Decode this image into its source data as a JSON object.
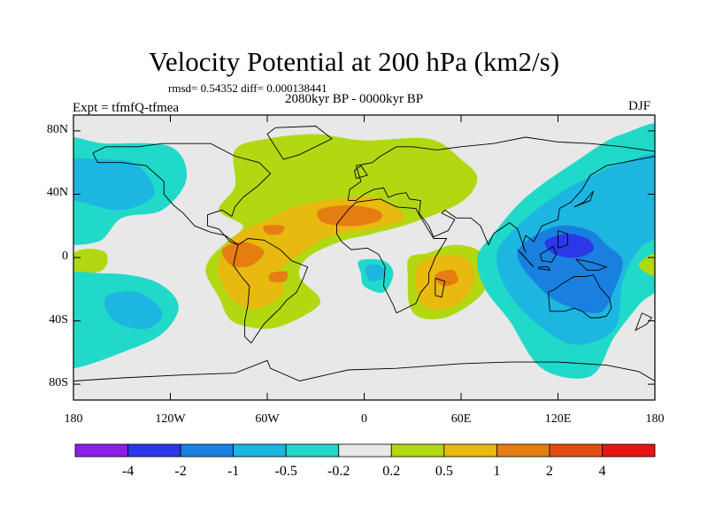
{
  "title": "Velocity Potential at 200 hPa (km2/s)",
  "stats": "rmsd= 0.54352 diff= 0.000138441",
  "experiment": "Expt = tfmfQ-tfmea",
  "period": "2080kyr BP - 0000kyr BP",
  "season": "DJF",
  "colors": {
    "background": "#e8e8e8",
    "frame": "#000000",
    "coast": "#000000"
  },
  "axes": {
    "y_ticks": [
      {
        "label": "80N",
        "lat": 80
      },
      {
        "label": "40N",
        "lat": 40
      },
      {
        "label": "0",
        "lat": 0
      },
      {
        "label": "40S",
        "lat": -40
      },
      {
        "label": "80S",
        "lat": -80
      }
    ],
    "x_ticks": [
      {
        "label": "180",
        "lon": -180
      },
      {
        "label": "120W",
        "lon": -120
      },
      {
        "label": "60W",
        "lon": -60
      },
      {
        "label": "0",
        "lon": 0
      },
      {
        "label": "60E",
        "lon": 60
      },
      {
        "label": "120E",
        "lon": 120
      },
      {
        "label": "180",
        "lon": 180
      }
    ]
  },
  "colorbar": {
    "colors": [
      "#8a1fe6",
      "#2b38e8",
      "#1a80e0",
      "#1cb6e0",
      "#21d9c9",
      "#e8e8e8",
      "#b2d812",
      "#e8b90f",
      "#e57d12",
      "#e24e12",
      "#e81414"
    ],
    "labels": [
      "-4",
      "-2",
      "-1",
      "-0.5",
      "-0.2",
      "0.2",
      "0.5",
      "1",
      "2",
      "4"
    ]
  },
  "chart_data": {
    "type": "heatmap",
    "title": "Velocity Potential at 200 hPa (km2/s)",
    "subtitle": "2080kyr BP - 0000kyr BP",
    "lon_range": [
      -180,
      180
    ],
    "lat_range": [
      -90,
      90
    ],
    "levels": [
      -4,
      -2,
      -1,
      -0.5,
      -0.2,
      0.2,
      0.5,
      1,
      2,
      4
    ],
    "features": [
      {
        "sign": "positive",
        "level": 0.2,
        "poly": [
          [
            -95,
            0
          ],
          [
            -85,
            10
          ],
          [
            -75,
            20
          ],
          [
            -90,
            30
          ],
          [
            -80,
            45
          ],
          [
            -80,
            68
          ],
          [
            -60,
            75
          ],
          [
            -30,
            78
          ],
          [
            0,
            74
          ],
          [
            40,
            75
          ],
          [
            60,
            62
          ],
          [
            70,
            50
          ],
          [
            60,
            35
          ],
          [
            30,
            22
          ],
          [
            5,
            15
          ],
          [
            -15,
            10
          ],
          [
            -35,
            0
          ],
          [
            -40,
            -12
          ],
          [
            -28,
            -25
          ],
          [
            -30,
            -32
          ],
          [
            -48,
            -42
          ],
          [
            -63,
            -45
          ],
          [
            -82,
            -40
          ],
          [
            -90,
            -25
          ],
          [
            -98,
            -10
          ]
        ]
      },
      {
        "sign": "positive",
        "level": 0.5,
        "poly": [
          [
            -78,
            15
          ],
          [
            -60,
            24
          ],
          [
            -40,
            33
          ],
          [
            -10,
            38
          ],
          [
            10,
            37
          ],
          [
            25,
            25
          ],
          [
            5,
            18
          ],
          [
            -20,
            14
          ],
          [
            -40,
            2
          ],
          [
            -52,
            -8
          ],
          [
            -50,
            -22
          ],
          [
            -65,
            -32
          ],
          [
            -80,
            -28
          ],
          [
            -90,
            -12
          ],
          [
            -88,
            3
          ]
        ]
      },
      {
        "sign": "positive",
        "level": 1,
        "poly": [
          [
            -28,
            30
          ],
          [
            -10,
            33
          ],
          [
            8,
            30
          ],
          [
            10,
            24
          ],
          [
            -5,
            20
          ],
          [
            -25,
            22
          ]
        ]
      },
      {
        "sign": "positive",
        "level": 1,
        "poly": [
          [
            -88,
            5
          ],
          [
            -75,
            10
          ],
          [
            -62,
            4
          ],
          [
            -70,
            -5
          ],
          [
            -82,
            -5
          ]
        ]
      },
      {
        "sign": "positive",
        "level": 1,
        "poly": [
          [
            -62,
            20
          ],
          [
            -50,
            20
          ],
          [
            -52,
            15
          ],
          [
            -60,
            15
          ]
        ]
      },
      {
        "sign": "positive",
        "level": 1,
        "poly": [
          [
            -58,
            -10
          ],
          [
            -48,
            -9
          ],
          [
            -49,
            -15
          ],
          [
            -58,
            -15
          ]
        ]
      },
      {
        "sign": "positive",
        "level": 0.2,
        "poly": [
          [
            28,
            0
          ],
          [
            40,
            3
          ],
          [
            55,
            8
          ],
          [
            70,
            5
          ],
          [
            78,
            -5
          ],
          [
            75,
            -20
          ],
          [
            65,
            -30
          ],
          [
            50,
            -38
          ],
          [
            35,
            -38
          ],
          [
            28,
            -30
          ],
          [
            27,
            -12
          ]
        ]
      },
      {
        "sign": "positive",
        "level": 0.5,
        "poly": [
          [
            35,
            -3
          ],
          [
            50,
            2
          ],
          [
            65,
            -2
          ],
          [
            68,
            -15
          ],
          [
            60,
            -28
          ],
          [
            45,
            -33
          ],
          [
            35,
            -28
          ],
          [
            32,
            -15
          ]
        ]
      },
      {
        "sign": "positive",
        "level": 1,
        "poly": [
          [
            45,
            -10
          ],
          [
            55,
            -8
          ],
          [
            58,
            -15
          ],
          [
            50,
            -18
          ],
          [
            45,
            -15
          ]
        ]
      },
      {
        "sign": "positive",
        "level": 0.2,
        "poly": [
          [
            -190,
            -5
          ],
          [
            -175,
            5
          ],
          [
            -160,
            3
          ],
          [
            -162,
            -8
          ],
          [
            -180,
            -10
          ]
        ]
      },
      {
        "sign": "negative",
        "level": -0.2,
        "poly": [
          [
            -190,
            72
          ],
          [
            -160,
            72
          ],
          [
            -120,
            70
          ],
          [
            -110,
            50
          ],
          [
            -125,
            30
          ],
          [
            -150,
            25
          ],
          [
            -165,
            10
          ],
          [
            -190,
            15
          ]
        ]
      },
      {
        "sign": "negative",
        "level": -0.5,
        "poly": [
          [
            -190,
            60
          ],
          [
            -160,
            62
          ],
          [
            -140,
            58
          ],
          [
            -130,
            40
          ],
          [
            -150,
            30
          ],
          [
            -175,
            35
          ],
          [
            -190,
            40
          ]
        ]
      },
      {
        "sign": "negative",
        "level": -0.5,
        "poly": [
          [
            -150,
            42
          ],
          [
            -140,
            42
          ],
          [
            -135,
            35
          ],
          [
            -145,
            33
          ]
        ]
      },
      {
        "sign": "negative",
        "level": -0.2,
        "poly": [
          [
            -190,
            -15
          ],
          [
            -160,
            -10
          ],
          [
            -130,
            -15
          ],
          [
            -115,
            -30
          ],
          [
            -125,
            -48
          ],
          [
            -150,
            -60
          ],
          [
            -180,
            -70
          ],
          [
            -190,
            -65
          ]
        ]
      },
      {
        "sign": "negative",
        "level": -0.5,
        "poly": [
          [
            -160,
            -25
          ],
          [
            -140,
            -22
          ],
          [
            -125,
            -35
          ],
          [
            -135,
            -45
          ],
          [
            -155,
            -40
          ]
        ]
      },
      {
        "sign": "negative",
        "level": -0.2,
        "poly": [
          [
            -3,
            -2
          ],
          [
            12,
            -2
          ],
          [
            18,
            -10
          ],
          [
            12,
            -22
          ],
          [
            0,
            -18
          ],
          [
            -2,
            -10
          ]
        ]
      },
      {
        "sign": "negative",
        "level": -0.5,
        "poly": [
          [
            2,
            -5
          ],
          [
            10,
            -5
          ],
          [
            13,
            -12
          ],
          [
            5,
            -15
          ],
          [
            1,
            -10
          ]
        ]
      },
      {
        "sign": "negative",
        "level": -0.2,
        "poly": [
          [
            80,
            15
          ],
          [
            100,
            38
          ],
          [
            130,
            60
          ],
          [
            160,
            78
          ],
          [
            190,
            78
          ],
          [
            190,
            -5
          ],
          [
            170,
            -30
          ],
          [
            155,
            -50
          ],
          [
            140,
            -75
          ],
          [
            110,
            -70
          ],
          [
            90,
            -40
          ],
          [
            75,
            -20
          ],
          [
            70,
            0
          ]
        ]
      },
      {
        "sign": "negative",
        "level": -0.5,
        "poly": [
          [
            90,
            15
          ],
          [
            120,
            40
          ],
          [
            160,
            60
          ],
          [
            185,
            62
          ],
          [
            185,
            20
          ],
          [
            170,
            5
          ],
          [
            160,
            -15
          ],
          [
            155,
            -45
          ],
          [
            130,
            -55
          ],
          [
            105,
            -40
          ],
          [
            88,
            -20
          ],
          [
            82,
            0
          ]
        ]
      },
      {
        "sign": "negative",
        "level": -1,
        "poly": [
          [
            100,
            10
          ],
          [
            120,
            20
          ],
          [
            140,
            17
          ],
          [
            150,
            8
          ],
          [
            160,
            -2
          ],
          [
            155,
            -20
          ],
          [
            145,
            -35
          ],
          [
            120,
            -28
          ],
          [
            105,
            -15
          ],
          [
            95,
            0
          ]
        ]
      },
      {
        "sign": "negative",
        "level": -2,
        "poly": [
          [
            112,
            10
          ],
          [
            125,
            15
          ],
          [
            138,
            12
          ],
          [
            142,
            5
          ],
          [
            132,
            0
          ],
          [
            118,
            2
          ]
        ]
      },
      {
        "sign": "positive",
        "level": 0.2,
        "poly": [
          [
            170,
            -5
          ],
          [
            180,
            3
          ],
          [
            195,
            5
          ],
          [
            195,
            -12
          ],
          [
            180,
            -12
          ]
        ]
      }
    ]
  }
}
